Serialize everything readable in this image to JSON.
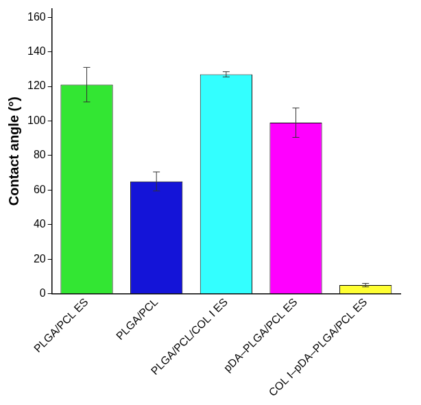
{
  "chart_data": {
    "type": "bar",
    "y_label": "Contact angle (°)",
    "categories": [
      "PLGA/PCL ES",
      "PLGA/PCL",
      "PLGA/PCL/COL I ES",
      "pDA–PLGA/PCL ES",
      "COL I–pDA–PLGA/PCL ES"
    ],
    "values": [
      121,
      65,
      127,
      99,
      5
    ],
    "errors": [
      10,
      5.5,
      1.5,
      8.5,
      1
    ],
    "colors": [
      "#33e633",
      "#1414d8",
      "#33ffff",
      "#ff00ff",
      "#ffff33"
    ],
    "ylim": [
      0,
      165
    ],
    "yticks": [
      0,
      20,
      40,
      60,
      80,
      100,
      120,
      140,
      160
    ],
    "grid": false
  }
}
